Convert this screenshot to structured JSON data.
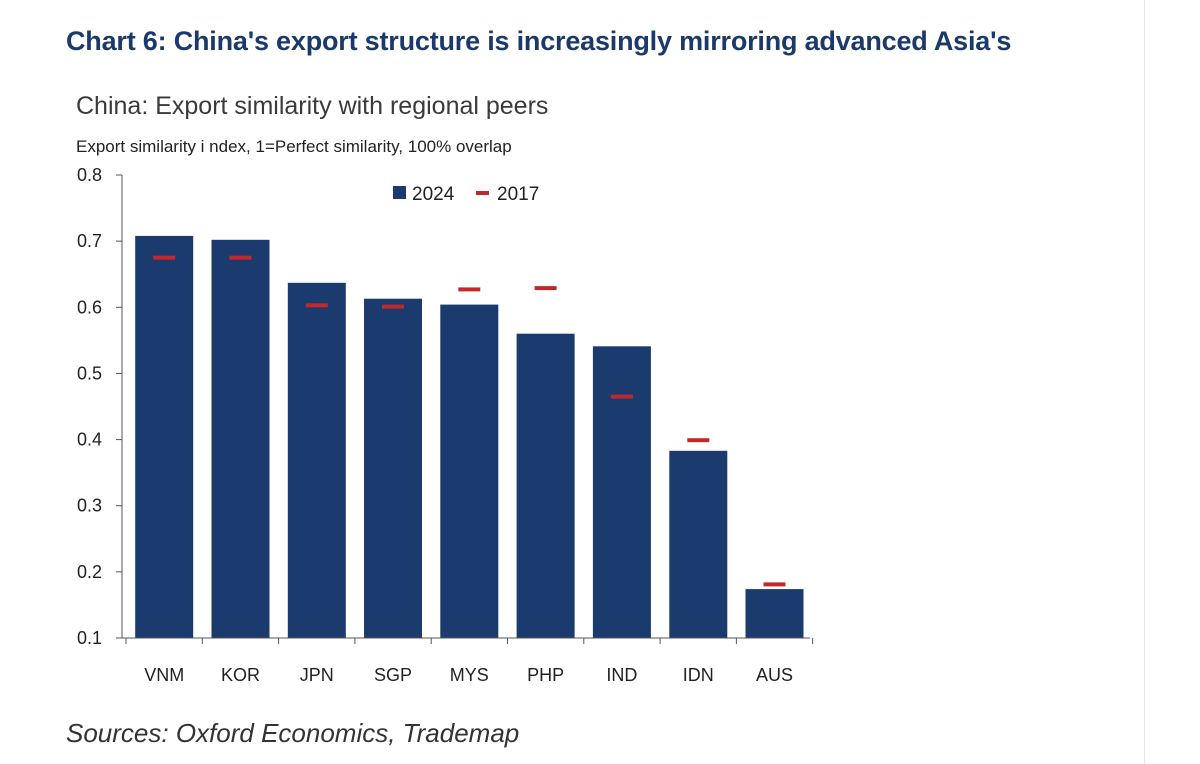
{
  "header": {
    "title": "Chart 6: China's export structure is increasingly mirroring advanced Asia's"
  },
  "footer": {
    "source": "Sources: Oxford Economics, Trademap"
  },
  "colors": {
    "bar": "#1b3a6e",
    "marker": "#c0282b",
    "title": "#1b3a6b"
  },
  "chart_data": {
    "type": "bar",
    "title": "China: Export similarity with regional peers",
    "subtitle": "Export  similarity i ndex, 1=Perfect similarity, 100% overlap",
    "xlabel": "",
    "ylabel": "",
    "ylim": [
      0.1,
      0.8
    ],
    "yticks": [
      "0.8",
      "0.7",
      "0.6",
      "0.5",
      "0.4",
      "0.3",
      "0.2",
      "0.1"
    ],
    "legend_position": "top",
    "categories": [
      "VNM",
      "KOR",
      "JPN",
      "SGP",
      "MYS",
      "PHP",
      "IND",
      "IDN",
      "AUS"
    ],
    "series": [
      {
        "name": "2024",
        "style": "bar",
        "values": [
          0.708,
          0.702,
          0.637,
          0.613,
          0.604,
          0.56,
          0.541,
          0.383,
          0.174
        ]
      },
      {
        "name": "2017",
        "style": "dash",
        "values": [
          0.675,
          0.675,
          0.603,
          0.601,
          0.627,
          0.629,
          0.465,
          0.399,
          0.181
        ]
      }
    ]
  }
}
